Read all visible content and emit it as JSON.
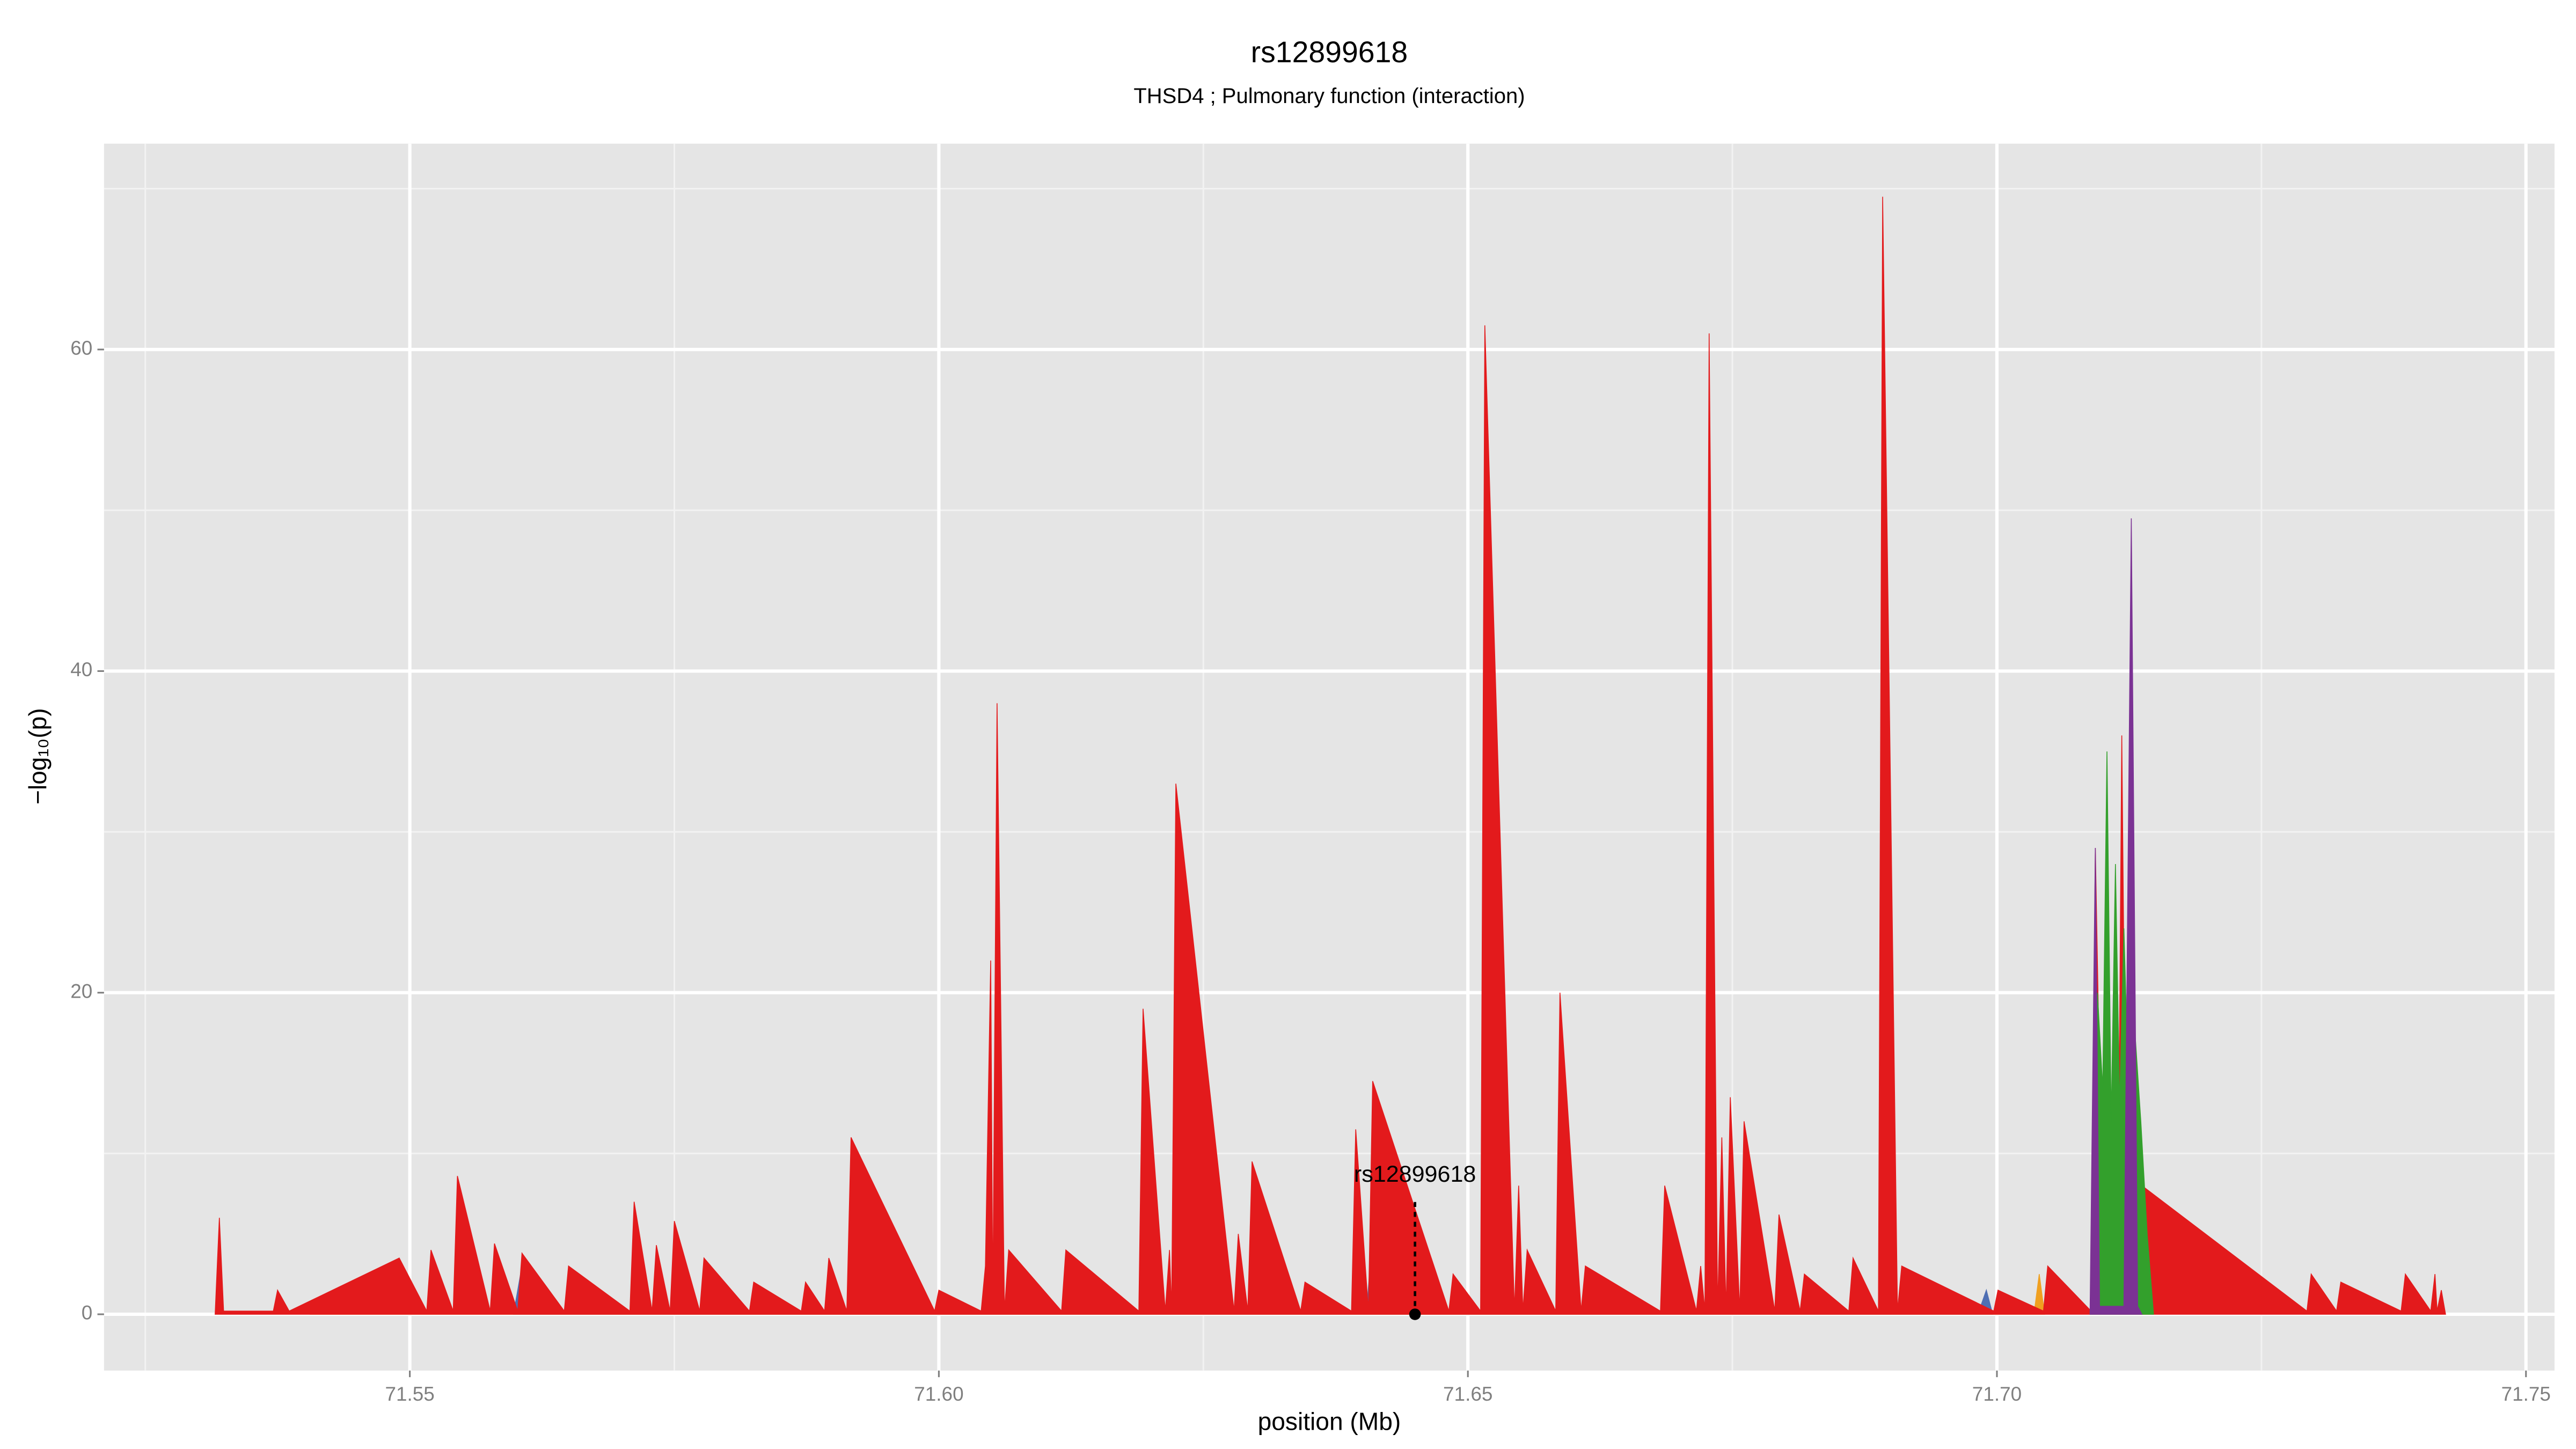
{
  "chart_data": {
    "type": "area",
    "title": "rs12899618",
    "subtitle": "THSD4 ; Pulmonary function (interaction)",
    "xlabel": "position (Mb)",
    "ylabel": "−log₁₀(p)",
    "xlim": [
      71.5211,
      71.7527
    ],
    "ylim": [
      -3.5,
      72.8
    ],
    "xticks": [
      71.55,
      {
        "value": 71.6,
        "label": "71.60"
      },
      71.65,
      {
        "value": 71.7,
        "label": "71.70"
      },
      71.75
    ],
    "xminorticks": [
      71.525,
      71.575,
      71.625,
      71.675,
      71.725
    ],
    "yticks": [
      0,
      20,
      40,
      60
    ],
    "yminorticks": [
      10,
      30,
      50,
      70
    ],
    "grid": true,
    "series": [
      {
        "name": "blue",
        "color": "#4f6fb3",
        "x": [
          71.5598,
          71.5606,
          71.5612,
          71.6404,
          71.641,
          71.6416,
          71.6982,
          71.699,
          71.6996
        ],
        "values": [
          0,
          3,
          0,
          0,
          5,
          0,
          0,
          1.5,
          0
        ]
      },
      {
        "name": "orange",
        "color": "#f0a020",
        "x": [
          71.5406,
          71.5412,
          71.542,
          71.6246,
          71.625,
          71.6255,
          71.7035,
          71.704,
          71.7045
        ],
        "values": [
          0,
          1,
          0,
          0,
          2,
          0,
          0,
          2.5,
          0
        ]
      },
      {
        "name": "red",
        "color": "#e31a1c",
        "x": [
          71.5316,
          71.532,
          71.5324,
          71.5371,
          71.5375,
          71.5386,
          71.549,
          71.5516,
          71.552,
          71.5541,
          71.5545,
          71.5576,
          71.558,
          71.5602,
          71.5606,
          71.5646,
          71.565,
          71.5708,
          71.5712,
          71.5729,
          71.5733,
          71.5746,
          71.575,
          71.5774,
          71.5778,
          71.5821,
          71.5825,
          71.587,
          71.5874,
          71.5892,
          71.5896,
          71.5913,
          71.5917,
          71.5996,
          71.6,
          71.604,
          71.6044,
          71.6049,
          71.6051,
          71.6055,
          71.6062,
          71.6066,
          71.6116,
          71.612,
          71.6189,
          71.6193,
          71.6214,
          71.6218,
          71.622,
          71.6224,
          71.6279,
          71.6283,
          71.6292,
          71.6296,
          71.6342,
          71.6346,
          71.639,
          71.6394,
          71.6406,
          71.641,
          71.6482,
          71.6486,
          71.6512,
          71.6516,
          71.6544,
          71.6548,
          71.6552,
          71.6556,
          71.6583,
          71.6587,
          71.6607,
          71.6611,
          71.6682,
          71.6686,
          71.6716,
          71.672,
          71.6724,
          71.6728,
          71.6736,
          71.674,
          71.6744,
          71.6748,
          71.6757,
          71.6761,
          71.679,
          71.6794,
          71.6814,
          71.6818,
          71.686,
          71.6864,
          71.6888,
          71.6892,
          71.6906,
          71.691,
          71.6997,
          71.7001,
          71.7044,
          71.7048,
          71.7089,
          71.7093,
          71.7101,
          71.7105,
          71.7114,
          71.7118,
          71.7123,
          71.7127,
          71.7133,
          71.7137,
          71.7293,
          71.7297,
          71.7321,
          71.7325,
          71.7382,
          71.7386,
          71.741,
          71.7414,
          71.7416,
          71.742,
          71.7424
        ],
        "values": [
          0,
          6,
          0.2,
          0.2,
          1.5,
          0.2,
          3.5,
          0.2,
          4,
          0.2,
          8.6,
          0.2,
          4.4,
          0.2,
          3.8,
          0.2,
          3,
          0.2,
          7,
          0.2,
          4.3,
          0.2,
          5.8,
          0.2,
          3.5,
          0.2,
          2,
          0.2,
          2,
          0.2,
          3.5,
          0.2,
          11,
          0.2,
          1.5,
          0.2,
          3,
          22,
          0.5,
          38,
          0.2,
          4,
          0.2,
          4,
          0.2,
          19,
          0.2,
          4,
          0.2,
          33,
          0.2,
          5,
          0.2,
          9.5,
          0.2,
          2,
          0.2,
          11.5,
          0.2,
          14.5,
          0.2,
          2.5,
          0.2,
          61.5,
          0.2,
          8,
          0.2,
          4,
          0.2,
          20,
          0.2,
          3,
          0.2,
          8,
          0.2,
          3,
          0.2,
          61,
          0.2,
          11,
          0.2,
          13.5,
          0.2,
          12,
          0.2,
          6.2,
          0.2,
          2.5,
          0.2,
          3.5,
          0.2,
          69.5,
          0.2,
          3,
          0.2,
          1.5,
          0.2,
          3,
          0.2,
          29,
          0.2,
          14,
          0.2,
          36,
          0.2,
          45,
          0.2,
          8,
          0.2,
          2.5,
          0.2,
          2,
          0.2,
          2.5,
          0.2,
          2.5,
          0.2,
          1.5,
          0
        ]
      },
      {
        "name": "green",
        "color": "#33a02c",
        "x": [
          71.7088,
          71.7095,
          71.71,
          71.7104,
          71.7108,
          71.7112,
          71.7116,
          71.712,
          71.7126,
          71.713,
          71.7136,
          71.7142,
          71.7148
        ],
        "values": [
          0,
          20,
          14,
          35,
          12,
          28,
          13,
          24,
          10,
          18,
          12,
          5,
          0
        ]
      },
      {
        "name": "purple",
        "color": "#7b3294",
        "x": [
          71.7088,
          71.7093,
          71.7097,
          71.712,
          71.7127,
          71.7133,
          71.7137
        ],
        "values": [
          0,
          29,
          0.5,
          0.5,
          49.5,
          0.5,
          0
        ]
      }
    ],
    "annotation": {
      "text": "rs12899618",
      "x": 71.645,
      "y": 0
    }
  }
}
